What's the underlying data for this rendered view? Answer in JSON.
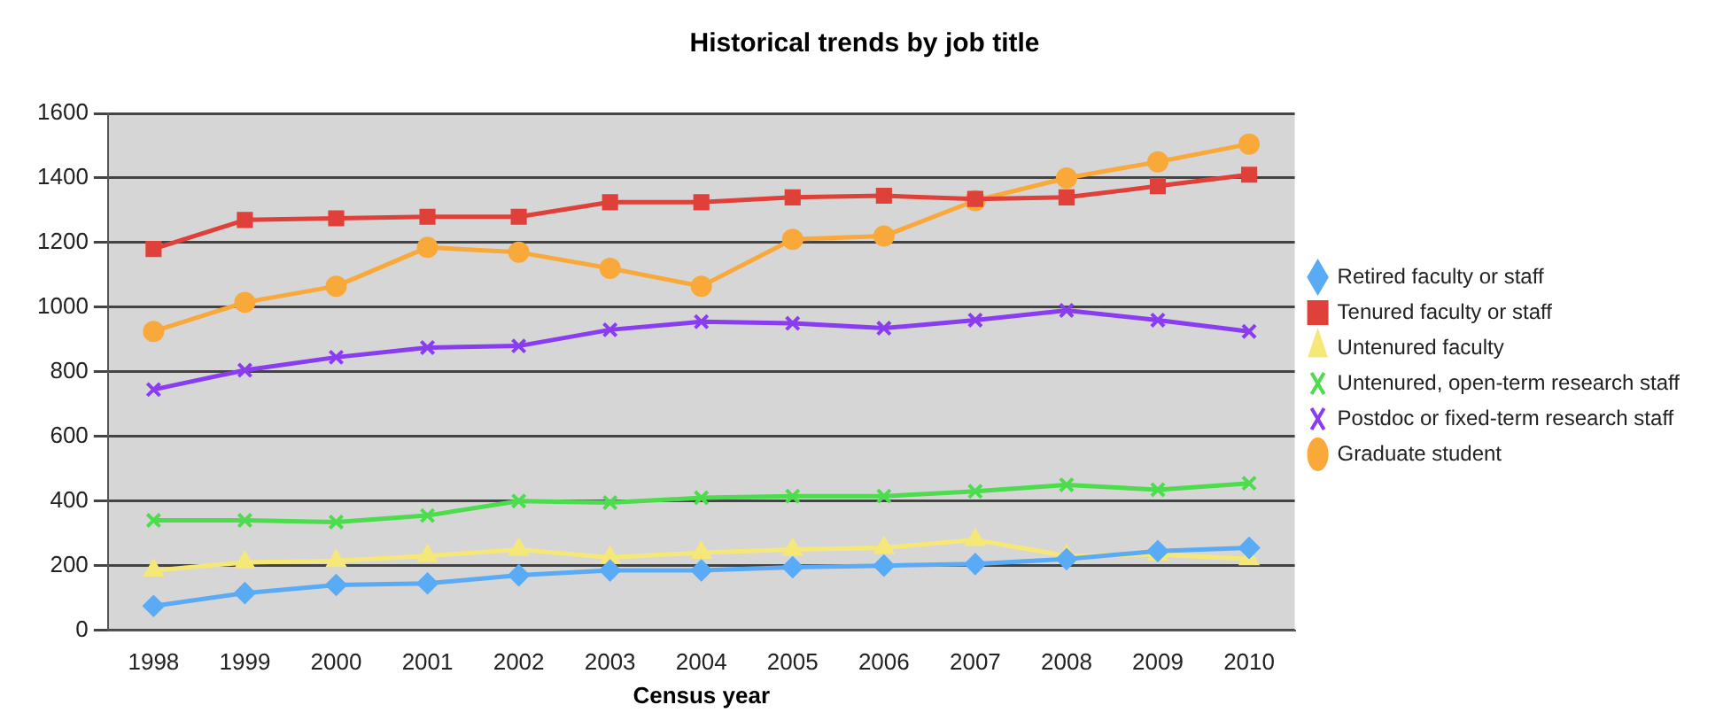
{
  "chart_data": {
    "type": "line",
    "title": "Historical trends by job title",
    "xlabel": "Census year",
    "categories": [
      "1998",
      "1999",
      "2000",
      "2001",
      "2002",
      "2003",
      "2004",
      "2005",
      "2006",
      "2007",
      "2008",
      "2009",
      "2010"
    ],
    "ylim": [
      0,
      1600
    ],
    "yticks": [
      0,
      200,
      400,
      600,
      800,
      1000,
      1200,
      1400,
      1600
    ],
    "grid": "y",
    "legend": "right",
    "line_style": "solid",
    "series": [
      {
        "name": "Retired faculty or staff",
        "color": "#5aabf5",
        "marker": "diamond",
        "values": [
          75,
          115,
          140,
          145,
          170,
          185,
          185,
          195,
          200,
          205,
          220,
          245,
          255
        ]
      },
      {
        "name": "Tenured faculty or staff",
        "color": "#e0403a",
        "marker": "square",
        "values": [
          1180,
          1270,
          1275,
          1280,
          1280,
          1325,
          1325,
          1340,
          1345,
          1335,
          1340,
          1375,
          1410
        ]
      },
      {
        "name": "Untenured faculty",
        "color": "#f5e878",
        "marker": "triangle",
        "values": [
          185,
          210,
          215,
          230,
          250,
          225,
          240,
          250,
          255,
          280,
          230,
          235,
          220
        ]
      },
      {
        "name": "Untenured, open-term research staff",
        "color": "#4ddc4d",
        "marker": "cross",
        "values": [
          340,
          340,
          335,
          355,
          400,
          395,
          410,
          415,
          415,
          430,
          450,
          435,
          455
        ]
      },
      {
        "name": "Postdoc or fixed-term research staff",
        "color": "#8a3cf0",
        "marker": "cross",
        "values": [
          745,
          805,
          845,
          875,
          880,
          930,
          955,
          950,
          935,
          960,
          990,
          960,
          925
        ]
      },
      {
        "name": "Graduate student",
        "color": "#f9a83a",
        "marker": "circle",
        "values": [
          925,
          1015,
          1065,
          1185,
          1170,
          1120,
          1065,
          1210,
          1220,
          1330,
          1400,
          1450,
          1505
        ]
      }
    ]
  }
}
